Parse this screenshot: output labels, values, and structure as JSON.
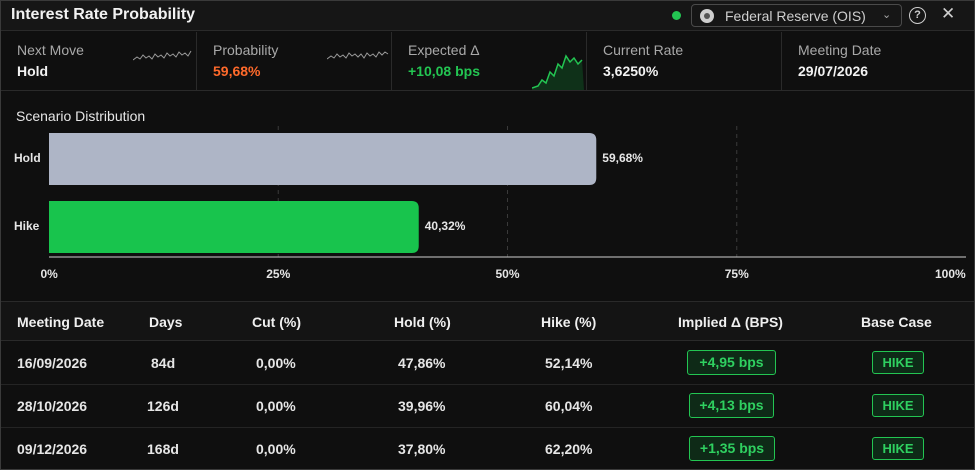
{
  "header": {
    "title": "Interest Rate Probability",
    "source_label": "Federal Reserve (OIS)",
    "live_color": "#23c552"
  },
  "stats": [
    {
      "label": "Next Move",
      "value": "Hold",
      "has_spark": true
    },
    {
      "label": "Probability",
      "value": "59,68%",
      "value_color": "#ff6a2b",
      "has_spark": true
    },
    {
      "label": "Expected Δ",
      "value": "+10,08 bps",
      "value_color": "#23c552",
      "has_spark": true
    },
    {
      "label": "Current Rate",
      "value": "3,6250%"
    },
    {
      "label": "Meeting Date",
      "value": "29/07/2026"
    }
  ],
  "chart_data": {
    "type": "bar",
    "orientation": "horizontal",
    "title": "Scenario Distribution",
    "categories": [
      "Hold",
      "Hike"
    ],
    "values": [
      59.68,
      40.32
    ],
    "value_labels": [
      "59,68%",
      "40,32%"
    ],
    "colors": [
      "#aeb5c6",
      "#18c44d"
    ],
    "xlim": [
      0,
      100
    ],
    "x_ticks": [
      "0%",
      "25%",
      "50%",
      "75%",
      "100%"
    ],
    "grid": true
  },
  "table": {
    "headers": [
      "Meeting Date",
      "Days",
      "Cut (%)",
      "Hold (%)",
      "Hike (%)",
      "Implied Δ (BPS)",
      "Base Case"
    ],
    "rows": [
      {
        "date": "16/09/2026",
        "days": "84d",
        "cut": "0,00%",
        "hold": "47,86%",
        "hike": "52,14%",
        "implied": "+4,95 bps",
        "base": "HIKE"
      },
      {
        "date": "28/10/2026",
        "days": "126d",
        "cut": "0,00%",
        "hold": "39,96%",
        "hike": "60,04%",
        "implied": "+4,13 bps",
        "base": "HIKE"
      },
      {
        "date": "09/12/2026",
        "days": "168d",
        "cut": "0,00%",
        "hold": "37,80%",
        "hike": "62,20%",
        "implied": "+1,35 bps",
        "base": "HIKE"
      }
    ]
  }
}
